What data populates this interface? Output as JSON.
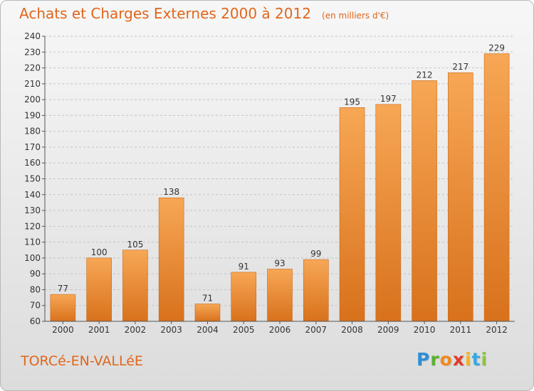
{
  "header": {
    "title": "Achats et Charges Externes 2000 à 2012",
    "unit": "(en milliers d'€)"
  },
  "footer": {
    "town": "TORCé-EN-VALLéE",
    "logo_letters": [
      "P",
      "r",
      "o",
      "x",
      "i",
      "t",
      "i"
    ]
  },
  "colors": {
    "bar_top": "#f7a755",
    "bar_bottom": "#d8711c",
    "accent": "#e0661b"
  },
  "chart_data": {
    "type": "bar",
    "title": "Achats et Charges Externes 2000 à 2012",
    "categories": [
      "2000",
      "2001",
      "2002",
      "2003",
      "2004",
      "2005",
      "2006",
      "2007",
      "2008",
      "2009",
      "2010",
      "2011",
      "2012"
    ],
    "values": [
      77,
      100,
      105,
      138,
      71,
      91,
      93,
      99,
      195,
      197,
      212,
      217,
      229
    ],
    "ylim": [
      60,
      240
    ],
    "yticks": [
      60,
      70,
      80,
      90,
      100,
      110,
      120,
      130,
      140,
      150,
      160,
      170,
      180,
      190,
      200,
      210,
      220,
      230,
      240
    ],
    "grid": true,
    "data_labels": true
  }
}
